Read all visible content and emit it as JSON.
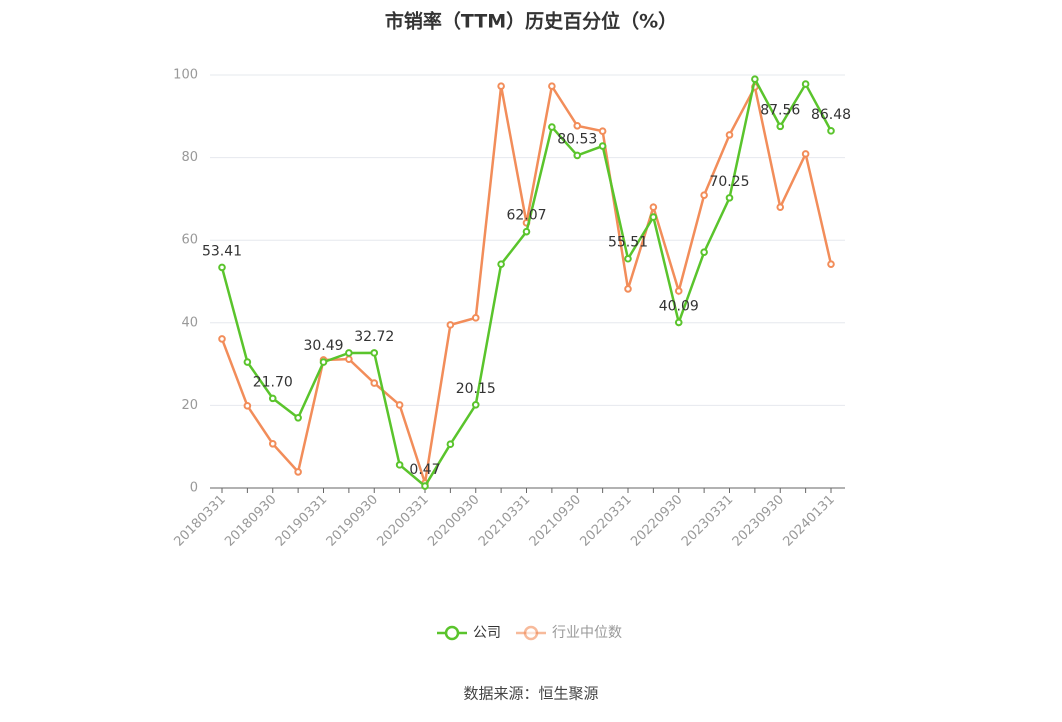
{
  "chart_data": {
    "type": "line",
    "title": "市销率（TTM）历史百分位（%）",
    "categories": [
      "20180331",
      null,
      "20180930",
      null,
      "20190331",
      null,
      "20190930",
      null,
      "20200331",
      null,
      "20200930",
      null,
      "20210331",
      null,
      "20210930",
      null,
      "20220331",
      null,
      "20220930",
      null,
      "20230331",
      null,
      "20230930",
      null,
      "20240131"
    ],
    "series": [
      {
        "name": "公司",
        "color": "#5ac42c",
        "values": [
          53.41,
          30.5,
          21.7,
          17,
          30.49,
          32.7,
          32.72,
          5.6,
          0.47,
          10.6,
          20.15,
          54.2,
          62.07,
          87.4,
          80.53,
          82.8,
          55.51,
          65.6,
          40.09,
          57.1,
          70.25,
          99,
          87.56,
          97.8,
          86.48
        ],
        "value_labels": [
          "53.41",
          null,
          "21.70",
          null,
          "30.49",
          null,
          "32.72",
          null,
          "0.47",
          null,
          "20.15",
          null,
          "62.07",
          null,
          "80.53",
          null,
          "55.51",
          null,
          "40.09",
          null,
          "70.25",
          null,
          "87.56",
          null,
          "86.48"
        ]
      },
      {
        "name": "行业中位数",
        "color": "#f28d5a",
        "values": [
          36.1,
          19.9,
          10.7,
          3.9,
          31,
          31.2,
          25.4,
          20.1,
          1.2,
          39.5,
          41.2,
          97.3,
          64.2,
          97.3,
          87.7,
          86.4,
          48.2,
          68,
          47.7,
          70.9,
          85.5,
          97.1,
          68,
          80.9,
          54.2
        ]
      }
    ],
    "ylim": [
      0,
      100
    ],
    "yticks": [
      0,
      20,
      40,
      60,
      80,
      100
    ],
    "grid": true,
    "source": "数据来源：恒生聚源"
  }
}
